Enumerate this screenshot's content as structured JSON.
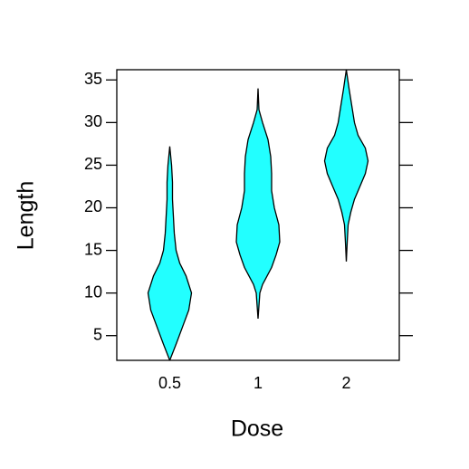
{
  "chart_data": {
    "type": "violin",
    "x_label": "Dose",
    "y_label": "Length",
    "categories": [
      "0.5",
      "1",
      "2"
    ],
    "ylim": [
      2.1,
      36.2
    ],
    "yticks": [
      5,
      10,
      15,
      20,
      25,
      30,
      35
    ],
    "color": "#22ffff",
    "violins": [
      {
        "y": [
          2.1,
          4,
          6,
          8,
          10,
          12,
          13.5,
          15,
          17,
          19,
          21,
          23,
          25,
          27.2
        ],
        "width": [
          0,
          0.07,
          0.14,
          0.21,
          0.24,
          0.18,
          0.11,
          0.07,
          0.05,
          0.04,
          0.03,
          0.03,
          0.02,
          0
        ]
      },
      {
        "y": [
          7,
          8.5,
          10,
          11,
          12,
          13,
          14.5,
          16,
          18,
          20,
          22,
          24,
          26,
          28,
          30,
          31.5,
          34
        ],
        "width": [
          0,
          0.01,
          0.02,
          0.05,
          0.1,
          0.15,
          0.2,
          0.24,
          0.23,
          0.18,
          0.15,
          0.15,
          0.14,
          0.11,
          0.05,
          0.01,
          0
        ]
      },
      {
        "y": [
          13.7,
          16,
          18,
          19.5,
          21,
          22.5,
          24,
          25.5,
          27,
          28.5,
          30,
          32,
          34,
          36.2
        ],
        "width": [
          0,
          0.01,
          0.02,
          0.05,
          0.09,
          0.15,
          0.21,
          0.24,
          0.21,
          0.13,
          0.09,
          0.06,
          0.03,
          0
        ]
      }
    ]
  }
}
